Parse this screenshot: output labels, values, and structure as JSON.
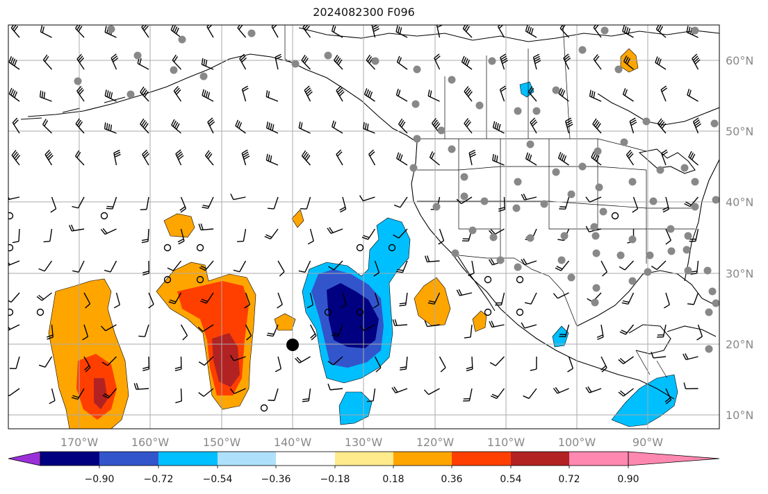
{
  "title": "2024082300 F096",
  "latitude_labels": [
    "60°N",
    "50°N",
    "40°N",
    "30°N",
    "20°N",
    "10°N"
  ],
  "longitude_labels": [
    "170°W",
    "160°W",
    "150°W",
    "140°W",
    "130°W",
    "120°W",
    "110°W",
    "100°W",
    "90°W"
  ],
  "colorbar": {
    "tick_labels": [
      "−0.90",
      "−0.72",
      "−0.54",
      "−0.36",
      "−0.18",
      "0.18",
      "0.36",
      "0.54",
      "0.72",
      "0.90"
    ],
    "colors": [
      "#9b30d9",
      "#000080",
      "#3355cc",
      "#00bfff",
      "#aee0fb",
      "#ffffff",
      "#ffea8c",
      "#ffa500",
      "#ff3f00",
      "#b22222",
      "#ff88b0"
    ]
  },
  "colors": {
    "gridline": "#aaaaaa",
    "station_dot": "#888888",
    "outline": "#000000"
  }
}
